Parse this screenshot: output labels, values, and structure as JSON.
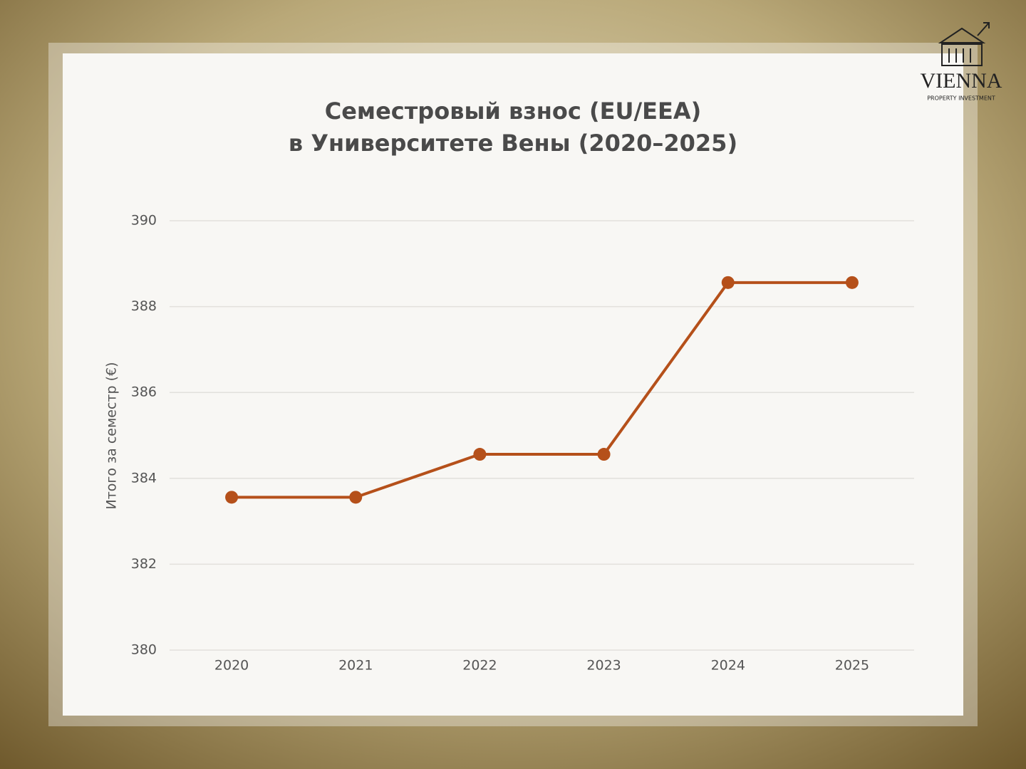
{
  "chart_data": {
    "type": "line",
    "title": [
      "Семестровый взнос (EU/EEA)",
      "в Университете Вены (2020–2025)"
    ],
    "y_label": "Итого за семестр (€)",
    "categories": [
      "2020",
      "2021",
      "2022",
      "2023",
      "2024",
      "2025"
    ],
    "series": [
      {
        "name": "Итого за семестр (€)",
        "color": "#b5501a",
        "values": [
          383.56,
          383.56,
          384.56,
          384.56,
          388.56,
          388.56
        ]
      }
    ],
    "ylim": [
      380,
      390
    ],
    "yticks": [
      380,
      382,
      384,
      386,
      388,
      390
    ],
    "grid": true
  },
  "logo": {
    "name": "VIENNA",
    "tagline": "PROPERTY INVESTMENT"
  }
}
